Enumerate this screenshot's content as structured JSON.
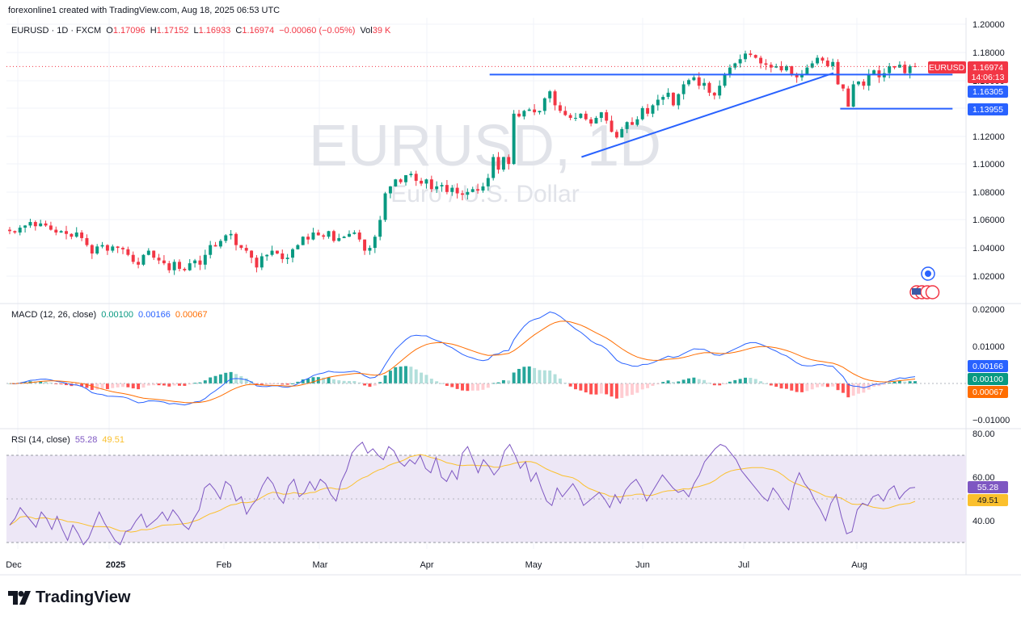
{
  "header": {
    "credit": "forexonline1 created with TradingView.com, Aug 18, 2025 06:53 UTC"
  },
  "symbol_legend": {
    "symbol": "EURUSD · 1D · FXCM",
    "o_label": "O",
    "o_value": "1.17096",
    "h_label": "H",
    "h_value": "1.17152",
    "l_label": "L",
    "l_value": "1.16933",
    "c_label": "C",
    "c_value": "1.16974",
    "change": "−0.00060 (−0.05%)",
    "vol_label": "Vol",
    "vol_value": "39 K"
  },
  "macd_legend": {
    "label": "MACD (12, 26, close)",
    "hist": "0.00100",
    "macd": "0.00166",
    "signal": "0.00067"
  },
  "rsi_legend": {
    "label": "RSI (14, close)",
    "rsi": "55.28",
    "ma": "49.51"
  },
  "watermark": {
    "symbol": "EURUSD, 1D",
    "name": "Euro / U.S. Dollar"
  },
  "footer": {
    "brand": "TradingView",
    "logo_icon": "tradingview-logo-icon"
  },
  "colors": {
    "up": "#089981",
    "down": "#f23645",
    "trendline": "#2962ff",
    "macd": "#2962ff",
    "signal": "#ff6d00",
    "rsi": "#7e57c2",
    "rsi_ma": "#fbc02d",
    "rsi_band": "#ede7f6",
    "grid": "#f0f3fa"
  },
  "chart_data": [
    {
      "type": "candlestick",
      "title": "EURUSD · 1D · FXCM",
      "subtitle": "Euro / U.S. Dollar",
      "x_ticks": [
        "Dec",
        "2025",
        "Feb",
        "Mar",
        "Apr",
        "May",
        "Jun",
        "Jul",
        "Aug"
      ],
      "y_ticks": [
        "1.20000",
        "1.18000",
        "1.16000",
        "1.14000",
        "1.12000",
        "1.10000",
        "1.08000",
        "1.06000",
        "1.04000",
        "1.02000"
      ],
      "ylim": [
        1.0,
        1.2
      ],
      "price_labels": [
        {
          "name": "EURUSD",
          "value": "1.16974",
          "countdown": "14:06:13",
          "y": 1.16974
        },
        {
          "value": "1.16305",
          "y": 1.16305
        },
        {
          "value": "1.13955",
          "y": 1.13955
        }
      ],
      "horizontal_lines": [
        {
          "y": 1.164,
          "x_start": "2025-04-15",
          "x_end": "2025-08-29"
        },
        {
          "y": 1.1396,
          "x_start": "2025-07-27",
          "x_end": "2025-08-29"
        }
      ],
      "trendline": {
        "from": [
          "2025-05-12",
          1.105
        ],
        "to": [
          "2025-07-25",
          1.165
        ]
      },
      "closes": [
        1.052,
        1.051,
        1.0545,
        1.056,
        1.0585,
        1.0555,
        1.0575,
        1.056,
        1.053,
        1.051,
        1.052,
        1.05,
        1.048,
        1.051,
        1.047,
        1.042,
        1.036,
        1.041,
        1.042,
        1.038,
        1.041,
        1.04,
        1.039,
        1.035,
        1.03,
        1.028,
        1.035,
        1.038,
        1.033,
        1.031,
        1.029,
        1.024,
        1.03,
        1.025,
        1.024,
        1.029,
        1.031,
        1.028,
        1.035,
        1.042,
        1.041,
        1.045,
        1.049,
        1.05,
        1.042,
        1.04,
        1.038,
        1.033,
        1.026,
        1.034,
        1.035,
        1.038,
        1.036,
        1.032,
        1.033,
        1.039,
        1.042,
        1.048,
        1.046,
        1.051,
        1.049,
        1.048,
        1.052,
        1.045,
        1.047,
        1.048,
        1.05,
        1.051,
        1.046,
        1.038,
        1.04,
        1.048,
        1.06,
        1.079,
        1.084,
        1.089,
        1.087,
        1.092,
        1.093,
        1.088,
        1.086,
        1.089,
        1.082,
        1.084,
        1.085,
        1.08,
        1.083,
        1.079,
        1.078,
        1.08,
        1.082,
        1.081,
        1.084,
        1.09,
        1.105,
        1.096,
        1.105,
        1.1,
        1.136,
        1.134,
        1.138,
        1.139,
        1.137,
        1.138,
        1.147,
        1.152,
        1.142,
        1.138,
        1.135,
        1.133,
        1.133,
        1.136,
        1.132,
        1.129,
        1.133,
        1.137,
        1.131,
        1.123,
        1.119,
        1.125,
        1.13,
        1.128,
        1.132,
        1.14,
        1.136,
        1.142,
        1.146,
        1.148,
        1.151,
        1.142,
        1.15,
        1.157,
        1.16,
        1.162,
        1.156,
        1.158,
        1.151,
        1.149,
        1.156,
        1.164,
        1.169,
        1.172,
        1.175,
        1.179,
        1.178,
        1.176,
        1.172,
        1.171,
        1.169,
        1.17,
        1.167,
        1.17,
        1.164,
        1.162,
        1.164,
        1.169,
        1.172,
        1.176,
        1.174,
        1.17,
        1.173,
        1.157,
        1.154,
        1.141,
        1.157,
        1.159,
        1.156,
        1.164,
        1.167,
        1.162,
        1.165,
        1.17,
        1.169,
        1.171,
        1.165,
        1.17,
        1.1697
      ],
      "rsi_series": [
        38,
        41,
        46,
        43,
        40,
        37,
        44,
        41,
        36,
        42,
        36,
        31,
        38,
        34,
        29,
        32,
        38,
        44,
        39,
        35,
        31,
        29,
        35,
        36,
        40,
        43,
        37,
        39,
        41,
        44,
        40,
        45,
        42,
        38,
        36,
        41,
        45,
        55,
        57,
        54,
        50,
        58,
        56,
        49,
        51,
        43,
        47,
        50,
        56,
        60,
        57,
        51,
        48,
        56,
        59,
        51,
        53,
        58,
        54,
        59,
        57,
        52,
        49,
        58,
        63,
        71,
        74,
        76,
        71,
        73,
        70,
        68,
        74,
        72,
        67,
        65,
        68,
        66,
        70,
        64,
        62,
        69,
        60,
        58,
        63,
        59,
        71,
        74,
        68,
        62,
        68,
        65,
        61,
        64,
        72,
        75,
        70,
        64,
        67,
        58,
        62,
        55,
        49,
        47,
        55,
        51,
        54,
        57,
        53,
        47,
        49,
        51,
        53,
        50,
        46,
        52,
        48,
        54,
        57,
        59,
        55,
        49,
        53,
        57,
        61,
        58,
        55,
        53,
        54,
        51,
        57,
        61,
        67,
        70,
        73,
        75,
        74,
        71,
        68,
        63,
        60,
        57,
        54,
        51,
        49,
        55,
        52,
        48,
        45,
        56,
        62,
        57,
        54,
        49,
        45,
        40,
        48,
        52,
        42,
        34,
        35,
        45,
        48,
        47,
        51,
        52,
        49,
        54,
        56,
        50,
        53,
        55,
        55.28
      ],
      "rsi_ticks": [
        "80.00",
        "60.00",
        "40.00"
      ],
      "rsi_levels": [
        70,
        30
      ],
      "macd_ticks": [
        "0.02000",
        "0.01000",
        "−0.01000"
      ]
    }
  ]
}
